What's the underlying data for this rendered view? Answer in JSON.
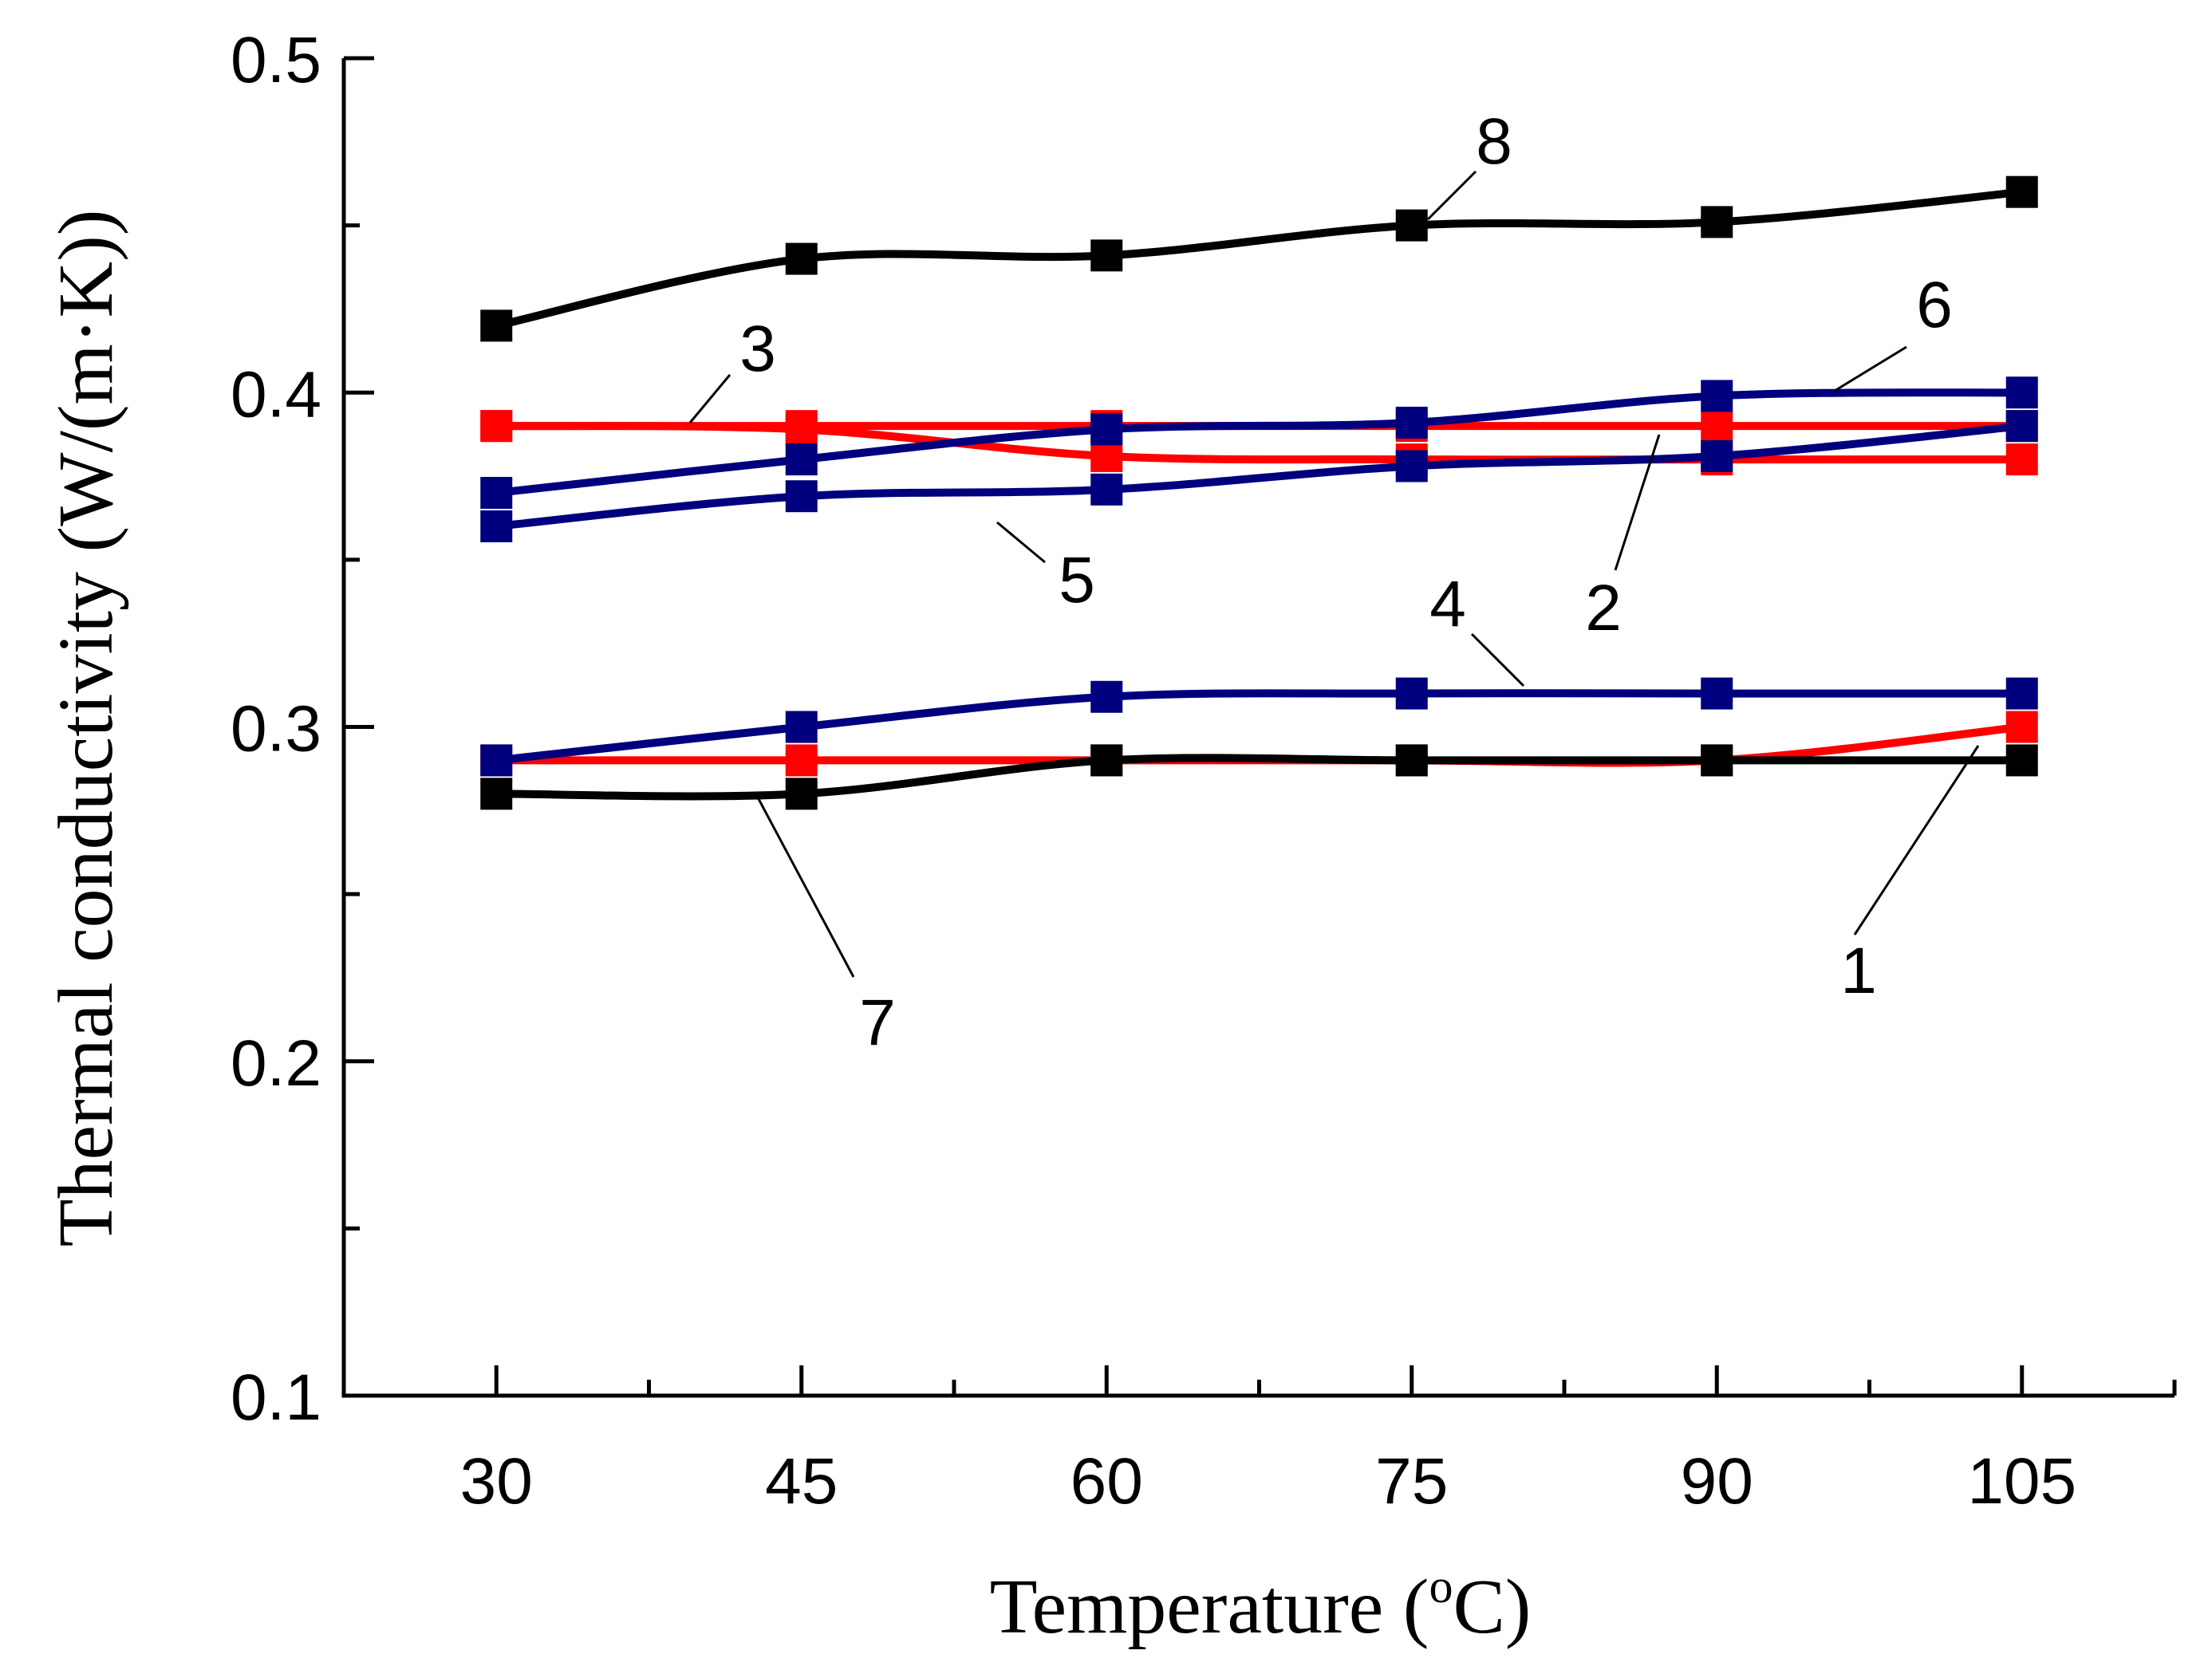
{
  "chart_data": {
    "type": "line",
    "title": "",
    "xlabel": "Temperature (",
    "xlabel_sup": "o",
    "xlabel_tail": "C)",
    "ylabel": "Thermal conductivity (W/(m·K))",
    "x": [
      30,
      45,
      60,
      75,
      90,
      105
    ],
    "x_tick_labels": [
      "30",
      "45",
      "60",
      "75",
      "90",
      "105"
    ],
    "y_tick_labels": [
      "0.1",
      "0.2",
      "0.3",
      "0.4",
      "0.5"
    ],
    "y_ticks": [
      0.1,
      0.2,
      0.3,
      0.4,
      0.5
    ],
    "xlim": [
      22.5,
      112.5
    ],
    "ylim": [
      0.1,
      0.5
    ],
    "grid": false,
    "legend": "none",
    "series": [
      {
        "name": "1",
        "color": "#ff0000",
        "values": [
          0.29,
          0.29,
          0.29,
          0.29,
          0.29,
          0.3
        ]
      },
      {
        "name": "2",
        "color": "#ff0000",
        "values": [
          0.39,
          0.39,
          0.39,
          0.39,
          0.39,
          0.39
        ]
      },
      {
        "name": "3",
        "color": "#ff0000",
        "values": [
          0.39,
          0.389,
          0.381,
          0.38,
          0.38,
          0.38
        ]
      },
      {
        "name": "4",
        "color": "#00007f",
        "values": [
          0.29,
          0.3,
          0.309,
          0.31,
          0.31,
          0.31
        ]
      },
      {
        "name": "5",
        "color": "#00007f",
        "values": [
          0.36,
          0.369,
          0.371,
          0.378,
          0.381,
          0.39
        ]
      },
      {
        "name": "6",
        "color": "#00007f",
        "values": [
          0.37,
          0.38,
          0.389,
          0.391,
          0.399,
          0.4
        ]
      },
      {
        "name": "7",
        "color": "#000000",
        "values": [
          0.28,
          0.28,
          0.29,
          0.29,
          0.29,
          0.29
        ]
      },
      {
        "name": "8",
        "color": "#000000",
        "values": [
          0.42,
          0.44,
          0.441,
          0.45,
          0.451,
          0.46
        ]
      }
    ],
    "annotations": [
      "1",
      "2",
      "3",
      "4",
      "5",
      "6",
      "7",
      "8"
    ]
  }
}
